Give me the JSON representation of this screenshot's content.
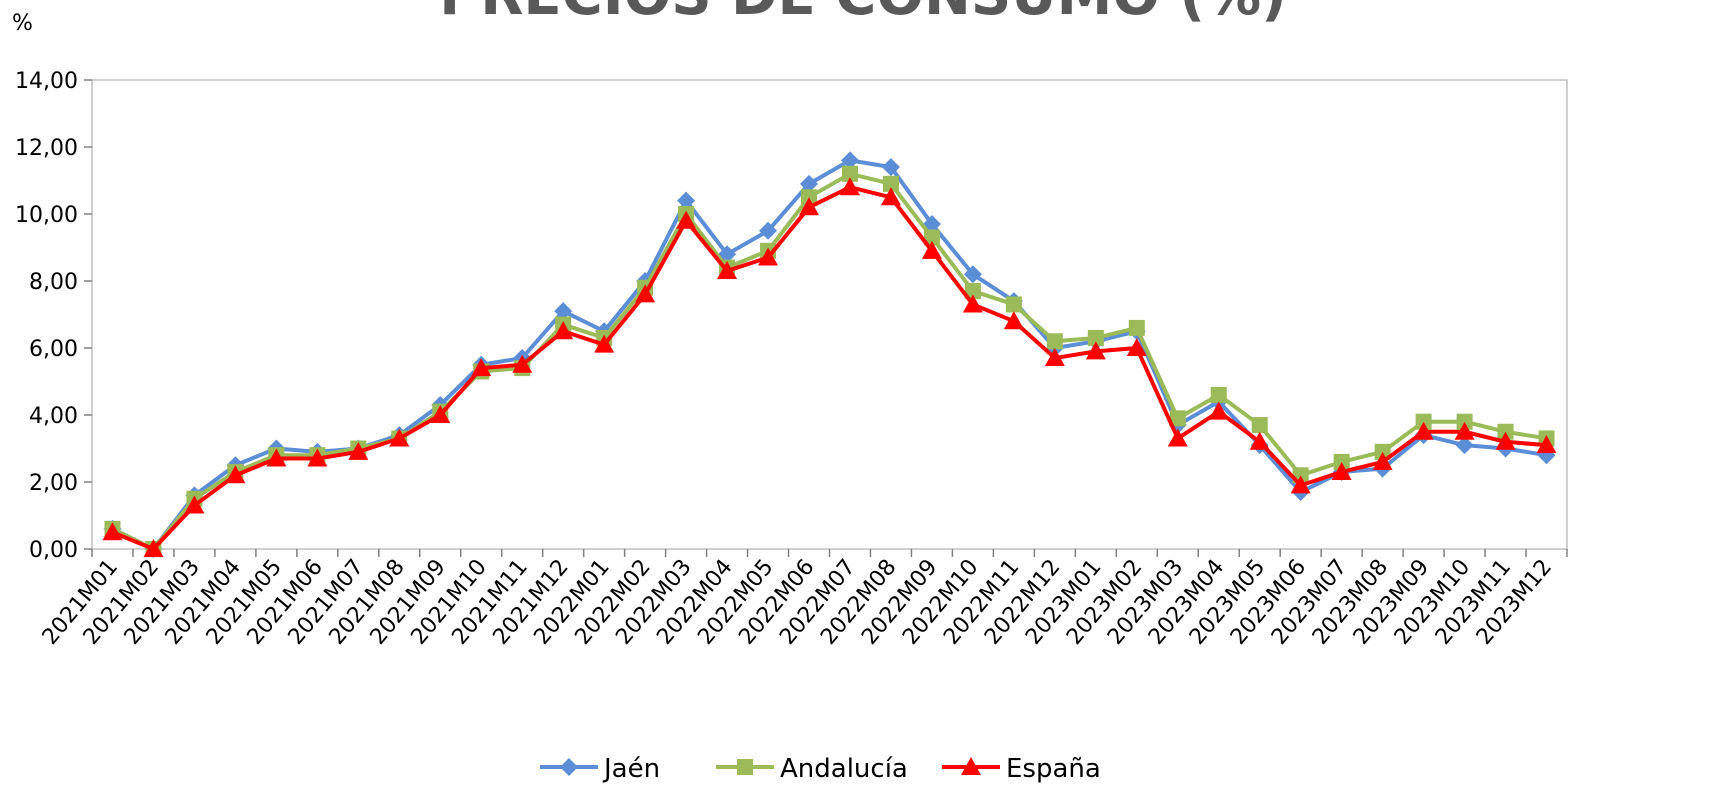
{
  "chart_data": {
    "type": "line",
    "title": "PRECIOS DE CONSUMO (%)",
    "ylabel": "%",
    "ylim": [
      0,
      14
    ],
    "yticks": [
      "0,00",
      "2,00",
      "4,00",
      "6,00",
      "8,00",
      "10,00",
      "12,00",
      "14,00"
    ],
    "grid": false,
    "legend": "bottom",
    "categories": [
      "2021M01",
      "2021M02",
      "2021M03",
      "2021M04",
      "2021M05",
      "2021M06",
      "2021M07",
      "2021M08",
      "2021M09",
      "2021M10",
      "2021M11",
      "2021M12",
      "2022M01",
      "2022M02",
      "2022M03",
      "2022M04",
      "2022M05",
      "2022M06",
      "2022M07",
      "2022M08",
      "2022M09",
      "2022M10",
      "2022M11",
      "2022M12",
      "2023M01",
      "2023M02",
      "2023M03",
      "2023M04",
      "2023M05",
      "2023M06",
      "2023M07",
      "2023M08",
      "2023M09",
      "2023M10",
      "2023M11",
      "2023M12"
    ],
    "series": [
      {
        "name": "Jaén",
        "color": "#5B8ED6",
        "marker": "diamond",
        "values": [
          0.6,
          0.0,
          1.6,
          2.5,
          3.0,
          2.9,
          3.0,
          3.4,
          4.3,
          5.5,
          5.7,
          7.1,
          6.5,
          8.0,
          10.4,
          8.8,
          9.5,
          10.9,
          11.6,
          11.4,
          9.7,
          8.2,
          7.4,
          6.0,
          6.2,
          6.5,
          3.7,
          4.4,
          3.1,
          1.7,
          2.3,
          2.4,
          3.4,
          3.1,
          3.0,
          2.8
        ]
      },
      {
        "name": "Andalucía",
        "color": "#9BBB59",
        "marker": "square",
        "values": [
          0.6,
          0.0,
          1.5,
          2.3,
          2.8,
          2.8,
          3.0,
          3.3,
          4.1,
          5.3,
          5.4,
          6.7,
          6.3,
          7.8,
          10.0,
          8.4,
          8.9,
          10.5,
          11.2,
          10.9,
          9.3,
          7.7,
          7.3,
          6.2,
          6.3,
          6.6,
          3.9,
          4.6,
          3.7,
          2.2,
          2.6,
          2.9,
          3.8,
          3.8,
          3.5,
          3.3
        ]
      },
      {
        "name": "España",
        "color": "#FF0000",
        "marker": "triangle",
        "values": [
          0.5,
          0.0,
          1.3,
          2.2,
          2.7,
          2.7,
          2.9,
          3.3,
          4.0,
          5.4,
          5.5,
          6.5,
          6.1,
          7.6,
          9.8,
          8.3,
          8.7,
          10.2,
          10.8,
          10.5,
          8.9,
          7.3,
          6.8,
          5.7,
          5.9,
          6.0,
          3.3,
          4.1,
          3.2,
          1.9,
          2.3,
          2.6,
          3.5,
          3.5,
          3.2,
          3.1
        ]
      }
    ]
  }
}
